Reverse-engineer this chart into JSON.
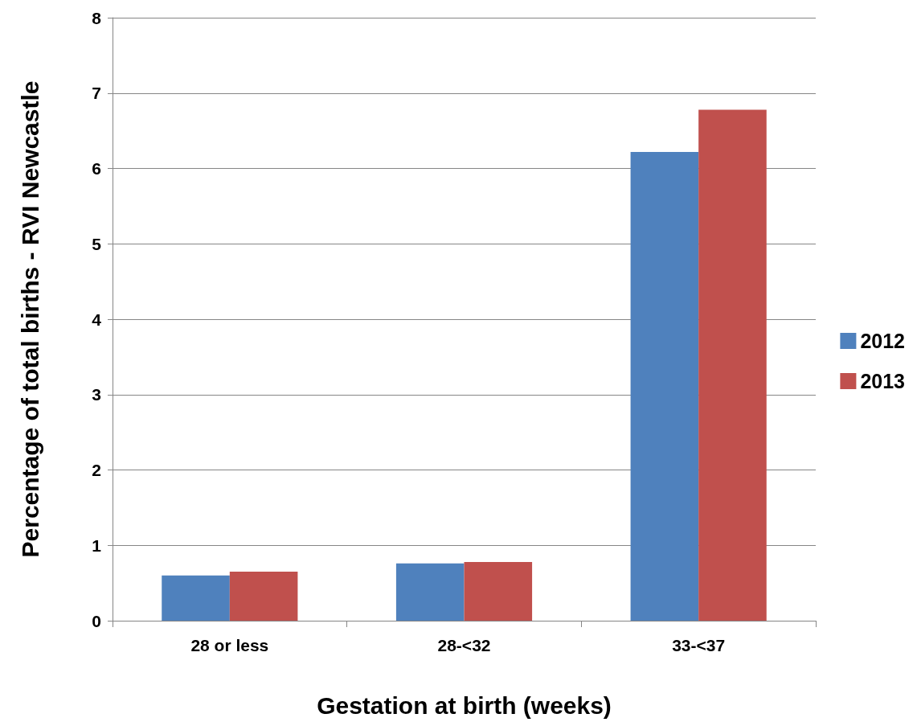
{
  "chart_data": {
    "type": "bar",
    "xlabel": "Gestation at birth (weeks)",
    "ylabel": "Percentage of total births - RVI Newcastle",
    "categories": [
      "28 or less",
      "28-<32",
      "33-<37"
    ],
    "series": [
      {
        "name": "2012",
        "color": "#4f81bd",
        "values": [
          0.6,
          0.76,
          6.22
        ]
      },
      {
        "name": "2013",
        "color": "#c0504d",
        "values": [
          0.65,
          0.78,
          6.78
        ]
      }
    ],
    "ylim": [
      0,
      8
    ],
    "yticks": [
      0,
      1,
      2,
      3,
      4,
      5,
      6,
      7,
      8
    ],
    "grid": "y",
    "legend": "right"
  }
}
